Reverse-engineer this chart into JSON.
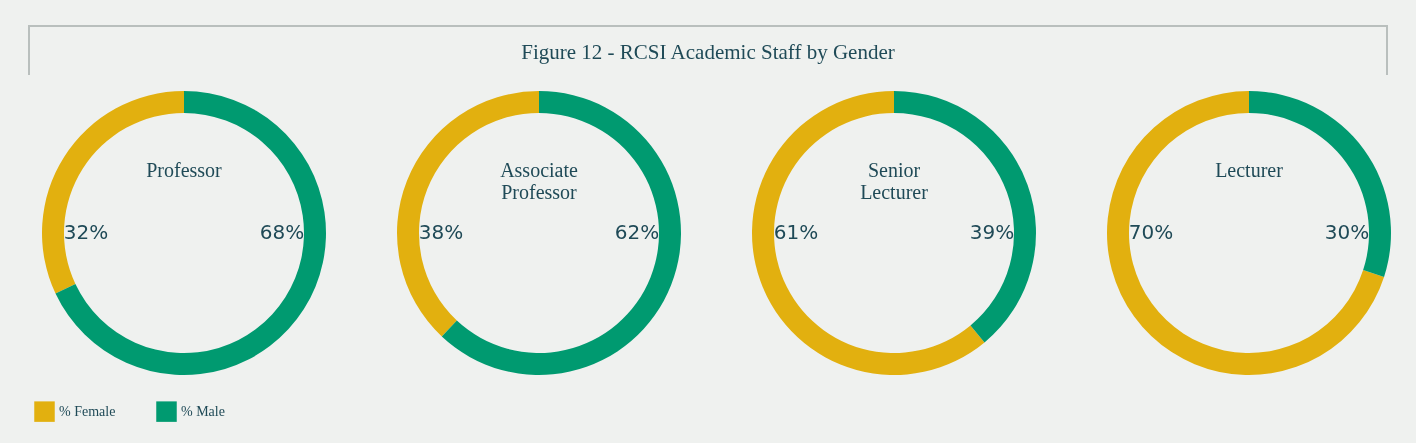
{
  "chart_data": [
    {
      "type": "other",
      "title": "Figure 12 - RCSI Academic Staff by Gender"
    },
    {
      "type": "donut",
      "title": "Professor",
      "categories": [
        "% Female",
        "% Male"
      ],
      "values": [
        32,
        68
      ],
      "value_labels": [
        "32%",
        "68%"
      ],
      "colors": [
        "#e2b00f",
        "#009a70"
      ],
      "legend": "bottom left"
    },
    {
      "type": "donut",
      "title": "Associate Professor",
      "categories": [
        null,
        null
      ],
      "values": [
        38,
        62
      ],
      "value_labels": [
        "38%",
        "62%"
      ],
      "colors": [
        "#e2b00f",
        "#009a70"
      ]
    },
    {
      "type": "donut",
      "title": "Senior Lecturer",
      "categories": [
        null,
        null
      ],
      "values": [
        61,
        39
      ],
      "value_labels": [
        "61%",
        "39%"
      ],
      "colors": [
        "#e2b00f",
        "#009a70"
      ]
    },
    {
      "type": "donut",
      "title": "Lecturer",
      "categories": [
        null,
        null
      ],
      "values": [
        70,
        30
      ],
      "value_labels": [
        "70%",
        "30%"
      ],
      "colors": [
        "#e2b00f",
        "#009a70"
      ]
    }
  ]
}
